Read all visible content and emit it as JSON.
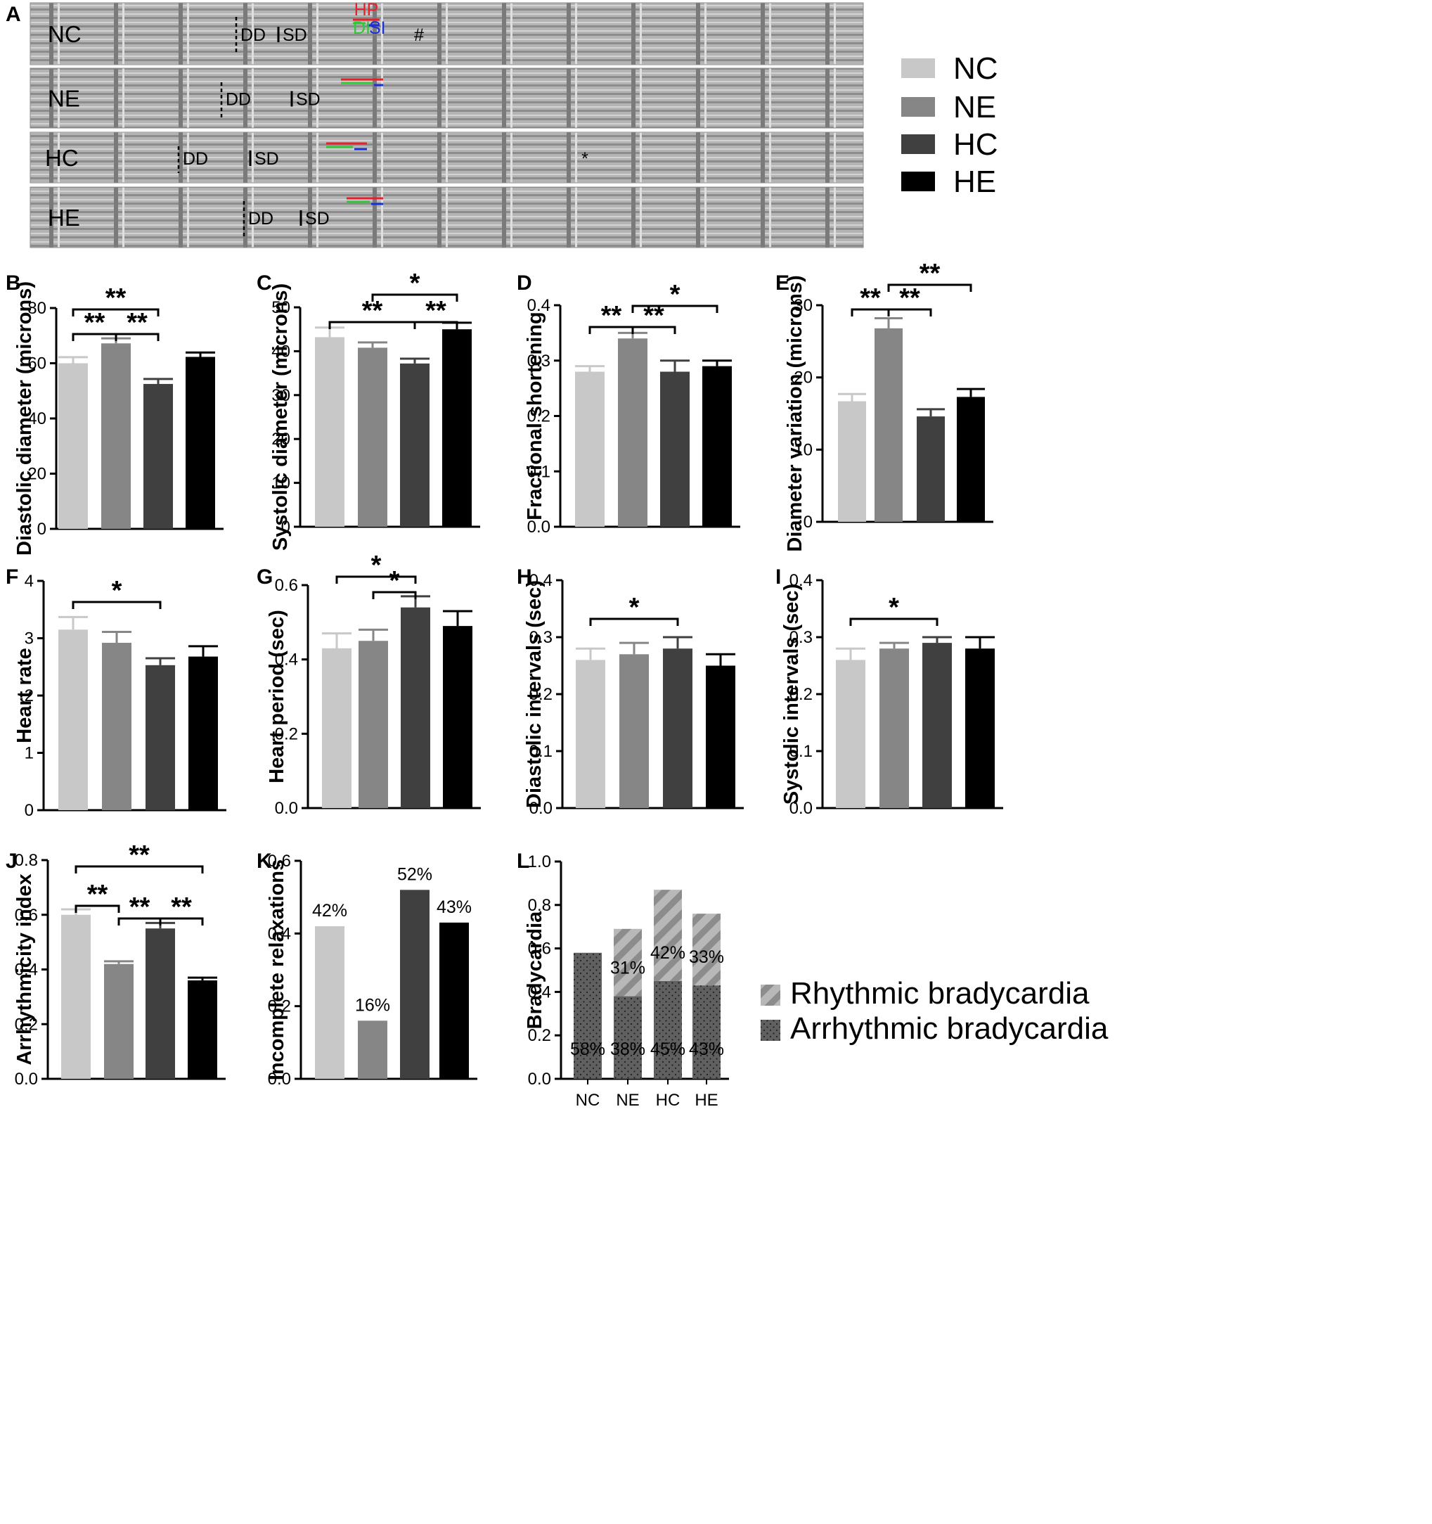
{
  "panel_a": {
    "letter": "A",
    "traces": [
      {
        "label": "NC",
        "dd": "DD",
        "sd": "SD",
        "hp": "HP",
        "di": "DI",
        "si": "SI",
        "mark": "#"
      },
      {
        "label": "NE",
        "dd": "DD",
        "sd": "SD",
        "mark": ""
      },
      {
        "label": "HC",
        "dd": "DD",
        "sd": "SD",
        "mark": "*"
      },
      {
        "label": "HE",
        "dd": "DD",
        "sd": "SD",
        "mark": ""
      }
    ]
  },
  "group_legend": [
    {
      "label": "NC",
      "color": "#c8c8c8"
    },
    {
      "label": "NE",
      "color": "#868686"
    },
    {
      "label": "HC",
      "color": "#404040"
    },
    {
      "label": "HE",
      "color": "#000000"
    }
  ],
  "colors": {
    "hp_line": "#e8202a",
    "di_line": "#35c63a",
    "si_line": "#1b2fd6",
    "trace_band": "#9a9a9a"
  },
  "chart_data": [
    {
      "id": "B",
      "type": "bar",
      "ylabel": "Diastolic diameter (microns)",
      "categories": [
        "NC",
        "NE",
        "HC",
        "HE"
      ],
      "values": [
        60,
        67.2,
        52.5,
        62.3
      ],
      "errors": [
        2.2,
        1.8,
        1.8,
        1.6
      ],
      "ylim": [
        0,
        80
      ],
      "yticks": [
        "0",
        "20",
        "40",
        "60",
        "80"
      ],
      "significance": [
        "**",
        "**",
        "**"
      ]
    },
    {
      "id": "C",
      "type": "bar",
      "ylabel": "Systolic diameter (microns)",
      "categories": [
        "NC",
        "NE",
        "HC",
        "HE"
      ],
      "values": [
        43.2,
        40.8,
        37.2,
        45
      ],
      "errors": [
        2.2,
        1.2,
        1.1,
        1.5
      ],
      "ylim": [
        0,
        50
      ],
      "yticks": [
        "0",
        "10",
        "20",
        "30",
        "40",
        "50"
      ],
      "significance": [
        "*",
        "**",
        "**"
      ]
    },
    {
      "id": "D",
      "type": "bar",
      "ylabel": "Fractional shortening",
      "categories": [
        "NC",
        "NE",
        "HC",
        "HE"
      ],
      "values": [
        0.28,
        0.34,
        0.28,
        0.29
      ],
      "errors": [
        0.01,
        0.01,
        0.02,
        0.01
      ],
      "ylim": [
        0,
        0.4
      ],
      "yticks": [
        "0.0",
        "0.1",
        "0.2",
        "0.3",
        "0.4"
      ],
      "significance": [
        "**",
        "*",
        "**"
      ]
    },
    {
      "id": "E",
      "type": "bar",
      "ylabel": "Diameter variation (microns)",
      "categories": [
        "NC",
        "NE",
        "HC",
        "HE"
      ],
      "values": [
        16.7,
        26.8,
        14.6,
        17.3
      ],
      "errors": [
        1,
        1.4,
        1,
        1.1
      ],
      "ylim": [
        0,
        30
      ],
      "yticks": [
        "0",
        "10",
        "20",
        "30"
      ],
      "significance": [
        "**",
        "**",
        "**"
      ]
    },
    {
      "id": "F",
      "type": "bar",
      "ylabel": "Heart rate",
      "categories": [
        "NC",
        "NE",
        "HC",
        "HE"
      ],
      "values": [
        3.15,
        2.92,
        2.53,
        2.68
      ],
      "errors": [
        0.22,
        0.19,
        0.12,
        0.18
      ],
      "ylim": [
        0,
        4
      ],
      "yticks": [
        "0",
        "1",
        "2",
        "3",
        "4"
      ],
      "significance": [
        "*"
      ]
    },
    {
      "id": "G",
      "type": "bar",
      "ylabel": "Heart period (sec)",
      "categories": [
        "NC",
        "NE",
        "HC",
        "HE"
      ],
      "values": [
        0.43,
        0.45,
        0.54,
        0.49
      ],
      "errors": [
        0.04,
        0.03,
        0.03,
        0.04
      ],
      "ylim": [
        0,
        0.6
      ],
      "yticks": [
        "0.0",
        "0.2",
        "0.4",
        "0.6"
      ],
      "significance": [
        "*",
        "*"
      ]
    },
    {
      "id": "H",
      "type": "bar",
      "ylabel": "Diastolic intervals (sec)",
      "categories": [
        "NC",
        "NE",
        "HC",
        "HE"
      ],
      "values": [
        0.26,
        0.27,
        0.28,
        0.25
      ],
      "errors": [
        0.02,
        0.02,
        0.02,
        0.02
      ],
      "ylim": [
        0,
        0.4
      ],
      "yticks": [
        "0.0",
        "0.1",
        "0.2",
        "0.3",
        "0.4"
      ],
      "significance": [
        "*"
      ]
    },
    {
      "id": "I",
      "type": "bar",
      "ylabel": "Systolic intervals (sec)",
      "categories": [
        "NC",
        "NE",
        "HC",
        "HE"
      ],
      "values": [
        0.26,
        0.28,
        0.29,
        0.28
      ],
      "errors": [
        0.02,
        0.01,
        0.01,
        0.02
      ],
      "ylim": [
        0,
        0.4
      ],
      "yticks": [
        "0.0",
        "0.1",
        "0.2",
        "0.3",
        "0.4"
      ],
      "significance": [
        "*"
      ]
    },
    {
      "id": "J",
      "type": "bar",
      "ylabel": "Arrhythmicity index",
      "categories": [
        "NC",
        "NE",
        "HC",
        "HE"
      ],
      "values": [
        0.6,
        0.42,
        0.55,
        0.36
      ],
      "errors": [
        0.02,
        0.01,
        0.02,
        0.01
      ],
      "ylim": [
        0,
        0.8
      ],
      "yticks": [
        "0.0",
        "0.2",
        "0.4",
        "0.6",
        "0.8"
      ],
      "significance": [
        "**",
        "**",
        "**",
        "**"
      ]
    },
    {
      "id": "K",
      "type": "bar",
      "ylabel": "Incomplete relaxations",
      "categories": [
        "NC",
        "NE",
        "HC",
        "HE"
      ],
      "values": [
        0.42,
        0.16,
        0.52,
        0.43
      ],
      "data_labels": [
        "42%",
        "16%",
        "52%",
        "43%"
      ],
      "ylim": [
        0,
        0.6
      ],
      "yticks": [
        "0.0",
        "0.2",
        "0.4",
        "0.6"
      ]
    },
    {
      "id": "L",
      "type": "bar",
      "stacked": true,
      "ylabel": "Bradycardia",
      "categories": [
        "NC",
        "NE",
        "HC",
        "HE"
      ],
      "ylim": [
        0,
        1
      ],
      "yticks": [
        "0.0",
        "0.2",
        "0.4",
        "0.6",
        "0.8",
        "1.0"
      ],
      "series": [
        {
          "name": "Arrhythmic bradycardia",
          "values": [
            0.58,
            0.38,
            0.45,
            0.43
          ],
          "labels": [
            "58%",
            "38%",
            "45%",
            "43%"
          ]
        },
        {
          "name": "Rhythmic bradycardia",
          "values": [
            0,
            0.31,
            0.42,
            0.33
          ],
          "labels": [
            "",
            "31%",
            "42%",
            "33%"
          ]
        }
      ],
      "legend": "right"
    }
  ]
}
